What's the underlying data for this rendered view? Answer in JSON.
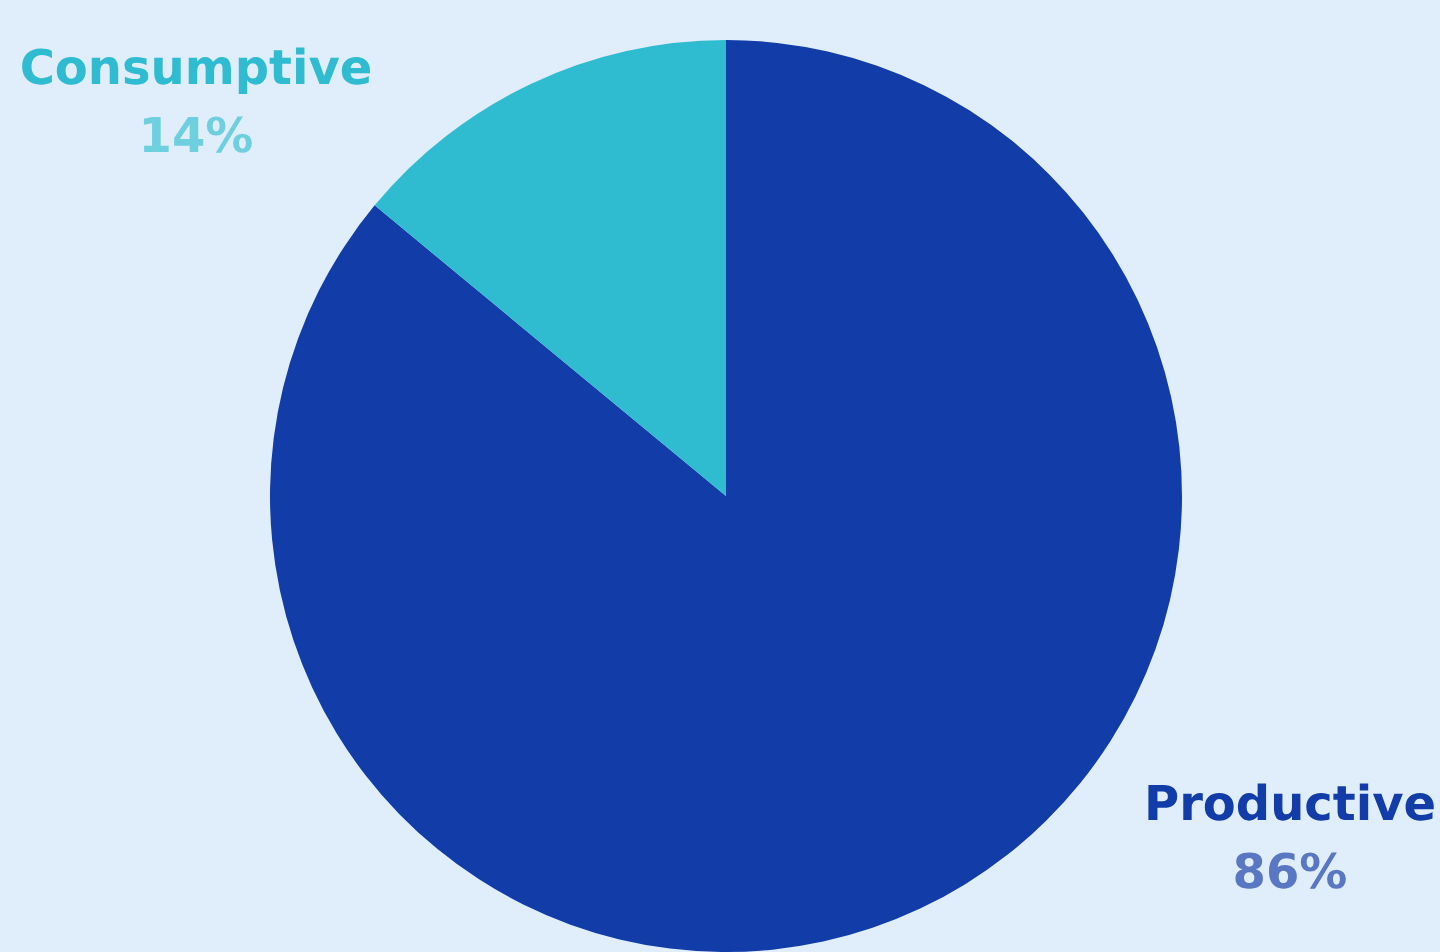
{
  "chart_data": {
    "type": "pie",
    "categories": [
      "Productive",
      "Consumptive"
    ],
    "values": [
      86,
      14
    ],
    "value_labels": [
      "86%",
      "14%"
    ],
    "colors": [
      "#123ca8",
      "#30bcd0"
    ]
  }
}
